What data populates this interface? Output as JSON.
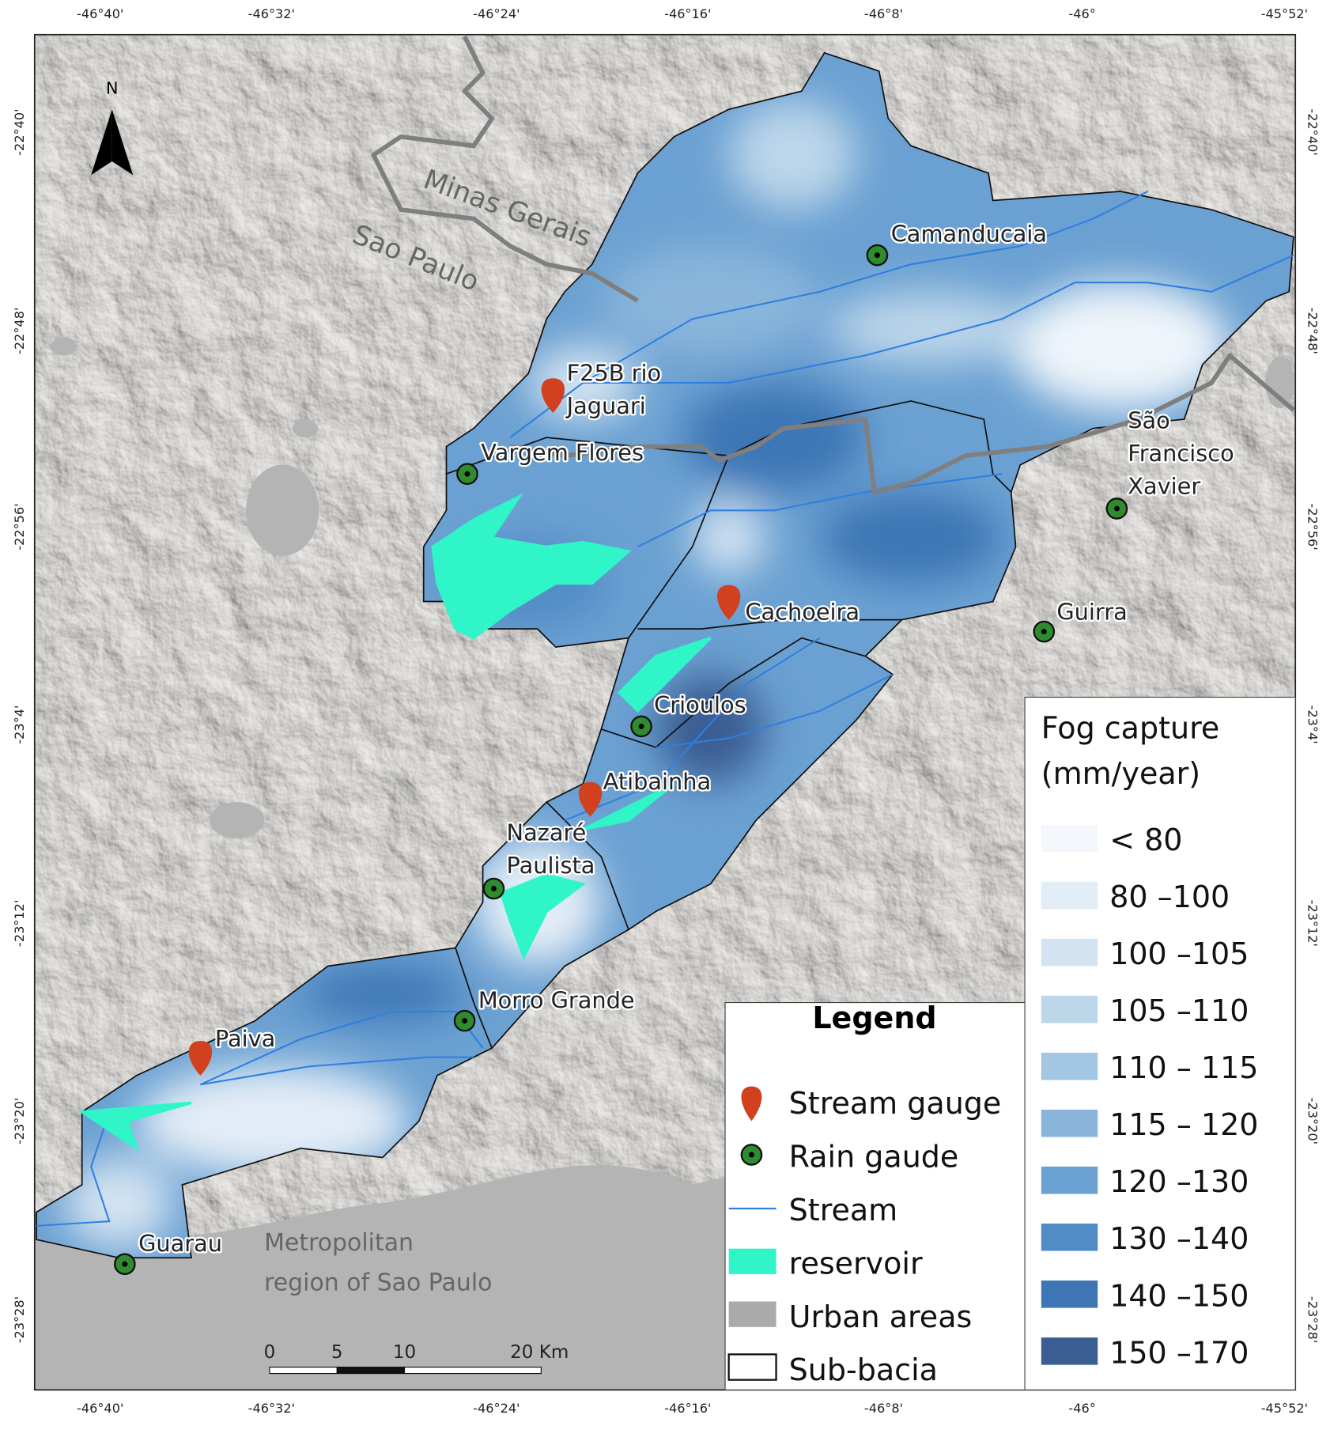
{
  "map": {
    "north_arrow": "N",
    "lon_ticks": [
      "-46°40'",
      "-46°32'",
      "-46°24'",
      "-46°16'",
      "-46°8'",
      "-46°",
      "-45°52'"
    ],
    "lat_ticks": [
      "-22°40'",
      "-22°48'",
      "-22°56'",
      "-23°4'",
      "-23°12'",
      "-23°20'",
      "-23°28'"
    ],
    "region_labels": {
      "minas_gerais": "Minas Gerais",
      "sao_paulo": "Sao Paulo",
      "metropolitan": [
        "Metropolitan",
        "region of Sao Paulo"
      ]
    },
    "stream_gauges": [
      [
        "F25B rio",
        "Jaguari"
      ],
      [
        "Cachoeira"
      ],
      [
        "Atibainha"
      ],
      [
        "Paiva"
      ]
    ],
    "rain_gauges": [
      [
        "Camanducaia"
      ],
      [
        "Vargem Flores"
      ],
      [
        "São",
        "Francisco",
        "Xavier"
      ],
      [
        "Guirra"
      ],
      [
        "Crioulos"
      ],
      [
        "Nazaré",
        "Paulista"
      ],
      [
        "Morro Grande"
      ],
      [
        "Guarau"
      ]
    ],
    "scale_bar": {
      "labels": [
        "0",
        "5",
        "10",
        "20 Km"
      ]
    }
  },
  "legend": {
    "title": "Legend",
    "items": [
      "Stream gauge",
      "Rain gaude",
      "Stream",
      "reservoir",
      "Urban areas",
      "Sub-bacia"
    ]
  },
  "fog_legend": {
    "title": [
      "Fog capture",
      "(mm/year)"
    ],
    "classes": [
      {
        "label": "< 80",
        "color": "#f4f8fc"
      },
      {
        "label": "80 –100",
        "color": "#e3edf7"
      },
      {
        "label": "100 –105",
        "color": "#d3e3f2"
      },
      {
        "label": "105 –110",
        "color": "#bcd6ea"
      },
      {
        "label": "110 – 115",
        "color": "#a3c6e2"
      },
      {
        "label": "115 – 120",
        "color": "#89b5db"
      },
      {
        "label": "120 –130",
        "color": "#6ba1d2"
      },
      {
        "label": "130 –140",
        "color": "#528cc6"
      },
      {
        "label": "140 –150",
        "color": "#3e76b5"
      },
      {
        "label": "150 –170",
        "color": "#3a5d92"
      }
    ]
  }
}
